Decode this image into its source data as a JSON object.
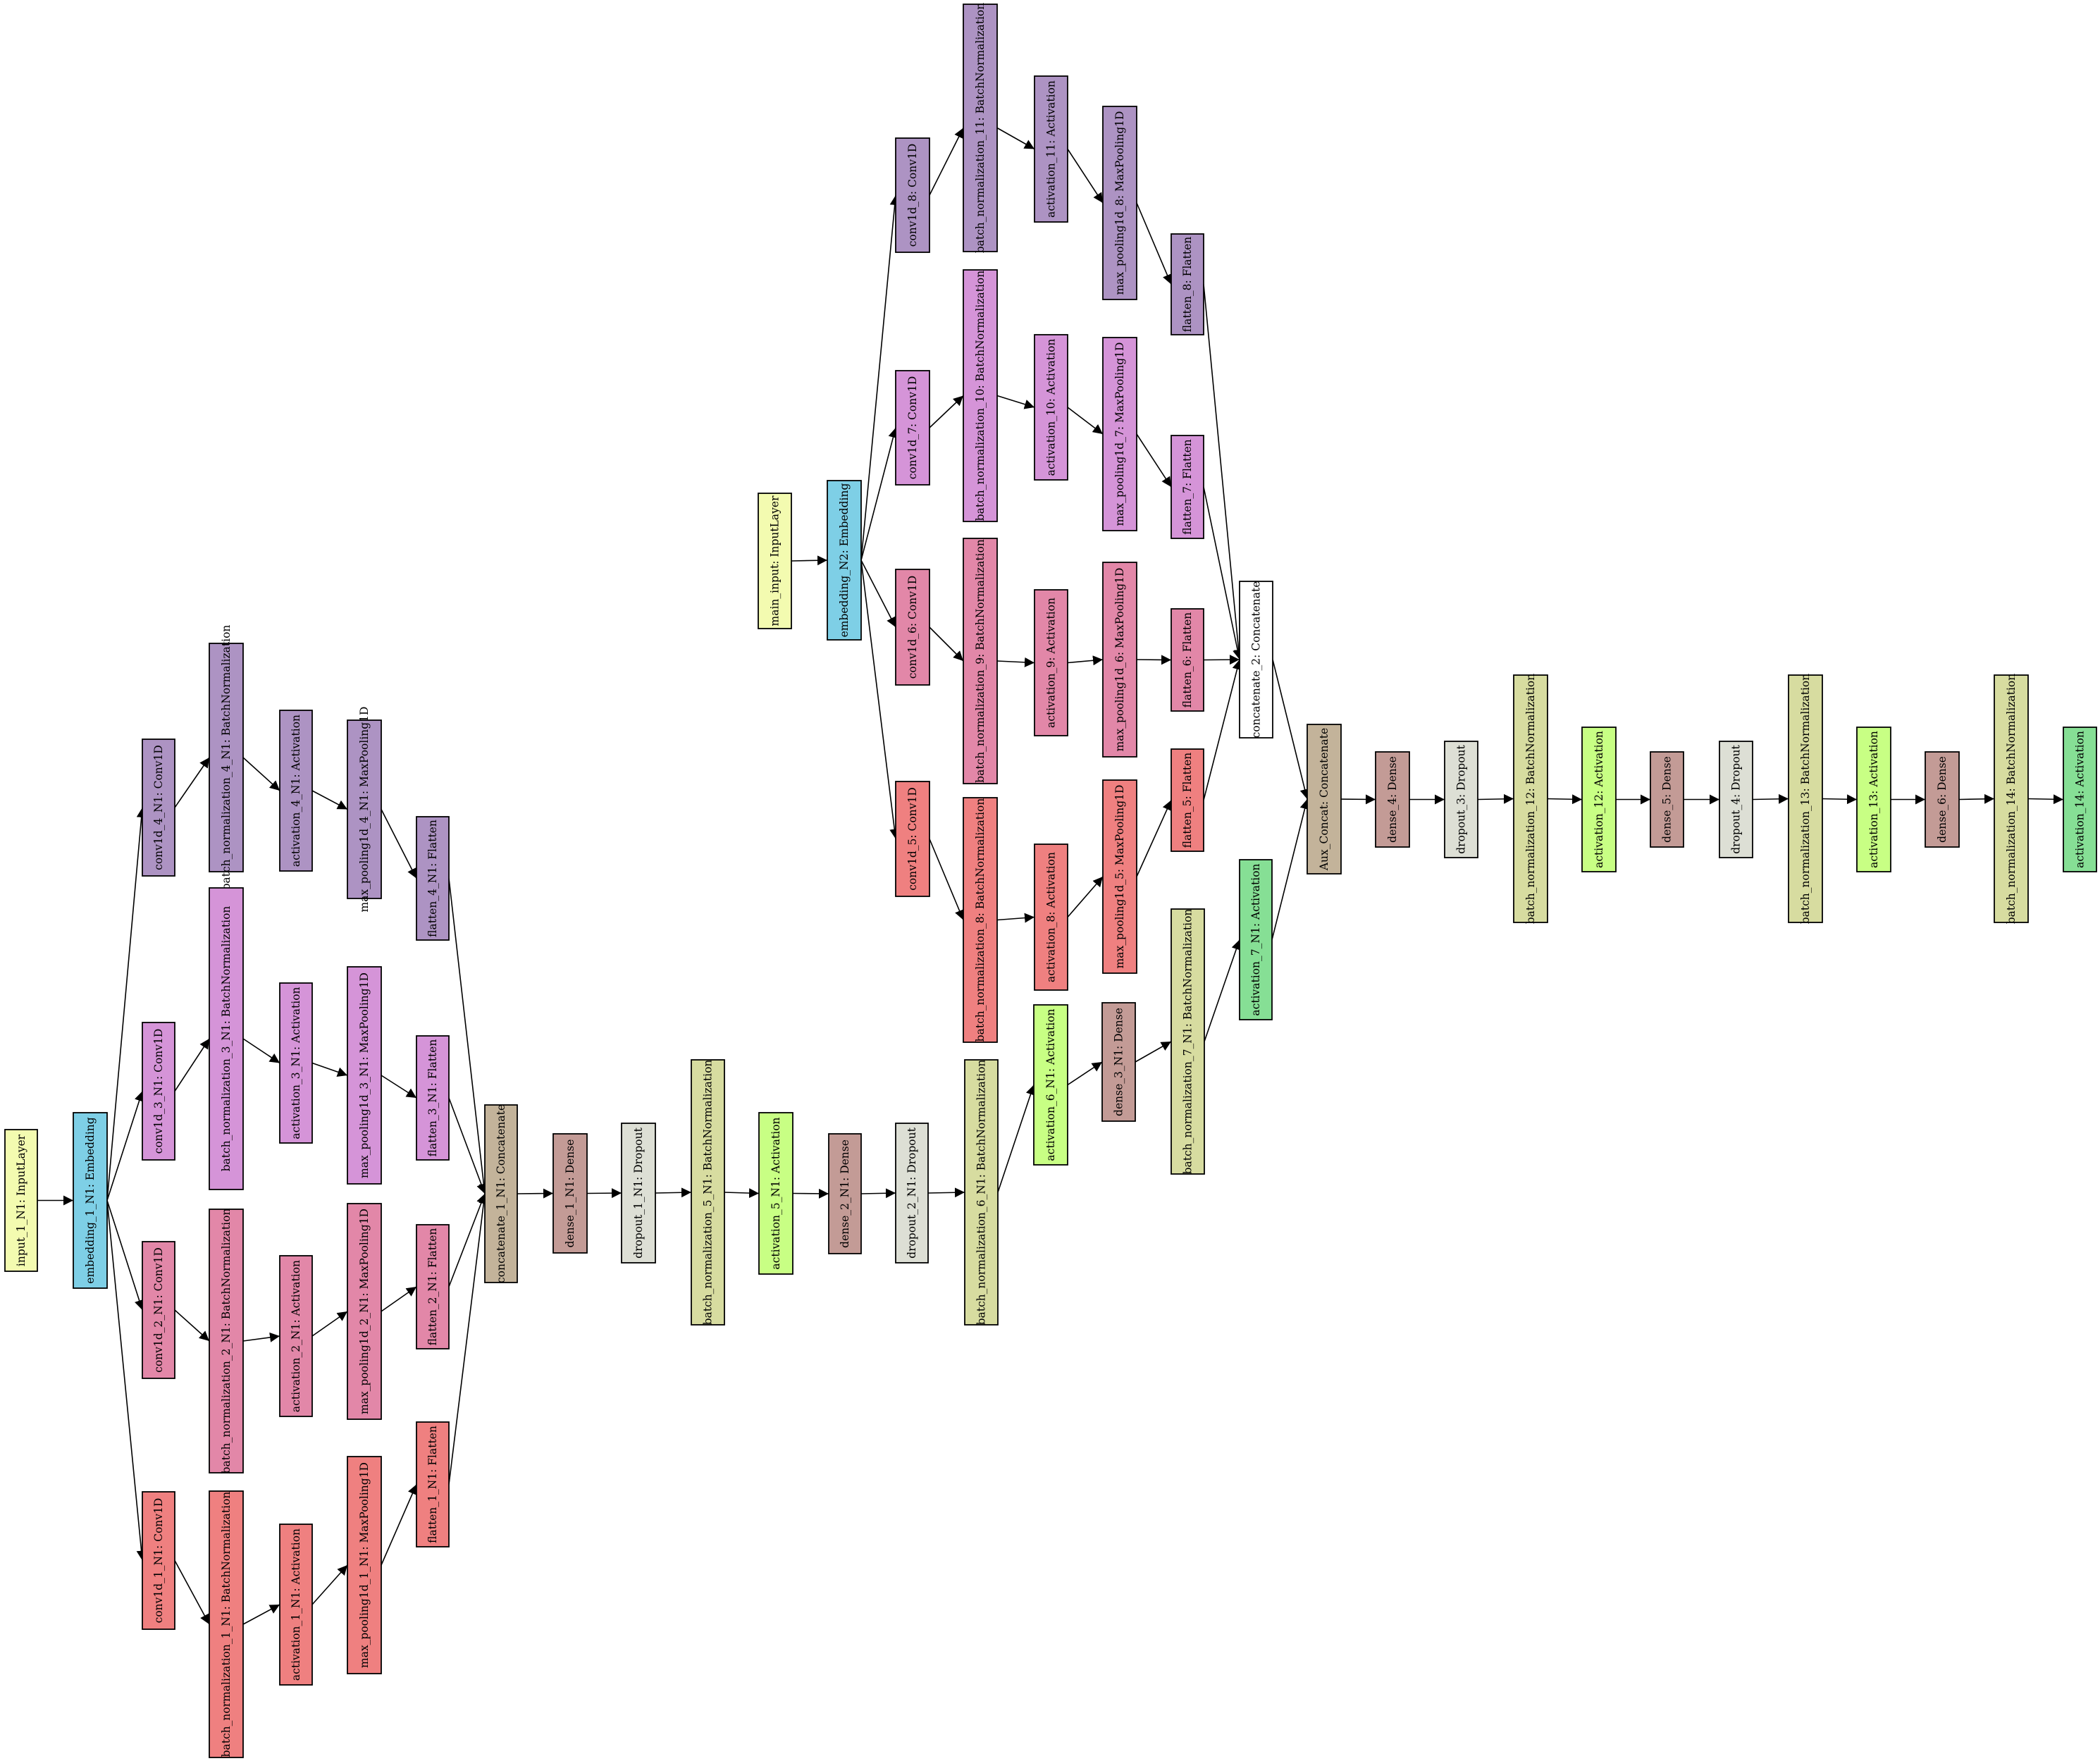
{
  "colors": {
    "input": "#f3fbb0",
    "embedding": "#7ecfe6",
    "branch_a": "#ad93c3",
    "branch_b": "#d594d8",
    "branch_c": "#e287a8",
    "branch_d": "#ef8080",
    "concat": "#c3b39a",
    "dense": "#c39b96",
    "dropout": "#dddfd5",
    "batchnorm": "#d7dca0",
    "activation_lime": "#c8ff84",
    "activation_green": "#86df95",
    "white": "#ffffff"
  },
  "nodes": [
    {
      "id": "input_1",
      "label": "input_1_N1: InputLayer",
      "type": "input"
    },
    {
      "id": "embedding_1",
      "label": "embedding_1_N1: Embedding",
      "type": "embedding"
    },
    {
      "id": "conv1d_4",
      "label": "conv1d_4_N1: Conv1D",
      "type": "branch_a"
    },
    {
      "id": "conv1d_3",
      "label": "conv1d_3_N1: Conv1D",
      "type": "branch_b"
    },
    {
      "id": "conv1d_2",
      "label": "conv1d_2_N1: Conv1D",
      "type": "branch_c"
    },
    {
      "id": "conv1d_1",
      "label": "conv1d_1_N1: Conv1D",
      "type": "branch_d"
    },
    {
      "id": "bn_4",
      "label": "batch_normalization_4_N1: BatchNormalization",
      "type": "branch_a"
    },
    {
      "id": "bn_3",
      "label": "batch_normalization_3_N1: BatchNormalization",
      "type": "branch_b"
    },
    {
      "id": "bn_2",
      "label": "batch_normalization_2_N1: BatchNormalization",
      "type": "branch_c"
    },
    {
      "id": "bn_1",
      "label": "batch_normalization_1_N1: BatchNormalization",
      "type": "branch_d"
    },
    {
      "id": "act_4",
      "label": "activation_4_N1: Activation",
      "type": "branch_a"
    },
    {
      "id": "act_3",
      "label": "activation_3_N1: Activation",
      "type": "branch_b"
    },
    {
      "id": "act_2",
      "label": "activation_2_N1: Activation",
      "type": "branch_c"
    },
    {
      "id": "act_1",
      "label": "activation_1_N1: Activation",
      "type": "branch_d"
    },
    {
      "id": "mp_4",
      "label": "max_pooling1d_4_N1: MaxPooling1D",
      "type": "branch_a"
    },
    {
      "id": "mp_3",
      "label": "max_pooling1d_3_N1: MaxPooling1D",
      "type": "branch_b"
    },
    {
      "id": "mp_2",
      "label": "max_pooling1d_2_N1: MaxPooling1D",
      "type": "branch_c"
    },
    {
      "id": "mp_1",
      "label": "max_pooling1d_1_N1: MaxPooling1D",
      "type": "branch_d"
    },
    {
      "id": "fl_4",
      "label": "flatten_4_N1: Flatten",
      "type": "branch_a"
    },
    {
      "id": "fl_3",
      "label": "flatten_3_N1: Flatten",
      "type": "branch_b"
    },
    {
      "id": "fl_2",
      "label": "flatten_2_N1: Flatten",
      "type": "branch_c"
    },
    {
      "id": "fl_1",
      "label": "flatten_1_N1: Flatten",
      "type": "branch_d"
    },
    {
      "id": "concat_1",
      "label": "concatenate_1_N1: Concatenate",
      "type": "concat"
    },
    {
      "id": "dense_1",
      "label": "dense_1_N1: Dense",
      "type": "dense"
    },
    {
      "id": "dropout_1",
      "label": "dropout_1_N1: Dropout",
      "type": "dropout"
    },
    {
      "id": "bn_5",
      "label": "batch_normalization_5_N1: BatchNormalization",
      "type": "batchnorm"
    },
    {
      "id": "act_5",
      "label": "activation_5_N1: Activation",
      "type": "activation_lime"
    },
    {
      "id": "dense_2",
      "label": "dense_2_N1: Dense",
      "type": "dense"
    },
    {
      "id": "dropout_2",
      "label": "dropout_2_N1: Dropout",
      "type": "dropout"
    },
    {
      "id": "bn_6",
      "label": "batch_normalization_6_N1: BatchNormalization",
      "type": "batchnorm"
    },
    {
      "id": "act_6",
      "label": "activation_6_N1: Activation",
      "type": "activation_lime"
    },
    {
      "id": "dense_3",
      "label": "dense_3_N1: Dense",
      "type": "dense"
    },
    {
      "id": "bn_7",
      "label": "batch_normalization_7_N1: BatchNormalization",
      "type": "batchnorm"
    },
    {
      "id": "act_7",
      "label": "activation_7_N1: Activation",
      "type": "activation_green"
    },
    {
      "id": "main_input",
      "label": "main_input: InputLayer",
      "type": "input"
    },
    {
      "id": "embedding_2",
      "label": "embedding_N2: Embedding",
      "type": "embedding"
    },
    {
      "id": "conv1d_8",
      "label": "conv1d_8: Conv1D",
      "type": "branch_a"
    },
    {
      "id": "conv1d_7",
      "label": "conv1d_7: Conv1D",
      "type": "branch_b"
    },
    {
      "id": "conv1d_6",
      "label": "conv1d_6: Conv1D",
      "type": "branch_c"
    },
    {
      "id": "conv1d_5",
      "label": "conv1d_5: Conv1D",
      "type": "branch_d"
    },
    {
      "id": "bn_11",
      "label": "batch_normalization_11: BatchNormalization",
      "type": "branch_a"
    },
    {
      "id": "bn_10",
      "label": "batch_normalization_10: BatchNormalization",
      "type": "branch_b"
    },
    {
      "id": "bn_9",
      "label": "batch_normalization_9: BatchNormalization",
      "type": "branch_c"
    },
    {
      "id": "bn_8",
      "label": "batch_normalization_8: BatchNormalization",
      "type": "branch_d"
    },
    {
      "id": "act_11",
      "label": "activation_11: Activation",
      "type": "branch_a"
    },
    {
      "id": "act_10",
      "label": "activation_10: Activation",
      "type": "branch_b"
    },
    {
      "id": "act_9",
      "label": "activation_9: Activation",
      "type": "branch_c"
    },
    {
      "id": "act_8",
      "label": "activation_8: Activation",
      "type": "branch_d"
    },
    {
      "id": "mp_8",
      "label": "max_pooling1d_8: MaxPooling1D",
      "type": "branch_a"
    },
    {
      "id": "mp_7",
      "label": "max_pooling1d_7: MaxPooling1D",
      "type": "branch_b"
    },
    {
      "id": "mp_6",
      "label": "max_pooling1d_6: MaxPooling1D",
      "type": "branch_c"
    },
    {
      "id": "mp_5",
      "label": "max_pooling1d_5: MaxPooling1D",
      "type": "branch_d"
    },
    {
      "id": "fl_8",
      "label": "flatten_8: Flatten",
      "type": "branch_a"
    },
    {
      "id": "fl_7",
      "label": "flatten_7: Flatten",
      "type": "branch_b"
    },
    {
      "id": "fl_6",
      "label": "flatten_6: Flatten",
      "type": "branch_c"
    },
    {
      "id": "fl_5",
      "label": "flatten_5: Flatten",
      "type": "branch_d"
    },
    {
      "id": "concat_2",
      "label": "concatenate_2: Concatenate",
      "type": "white"
    },
    {
      "id": "aux_concat",
      "label": "Aux_Concat: Concatenate",
      "type": "concat"
    },
    {
      "id": "dense_4",
      "label": "dense_4: Dense",
      "type": "dense"
    },
    {
      "id": "dropout_3",
      "label": "dropout_3: Dropout",
      "type": "dropout"
    },
    {
      "id": "bn_12",
      "label": "batch_normalization_12: BatchNormalization",
      "type": "batchnorm"
    },
    {
      "id": "act_12",
      "label": "activation_12: Activation",
      "type": "activation_lime"
    },
    {
      "id": "dense_5",
      "label": "dense_5: Dense",
      "type": "dense"
    },
    {
      "id": "dropout_4",
      "label": "dropout_4: Dropout",
      "type": "dropout"
    },
    {
      "id": "bn_13",
      "label": "batch_normalization_13: BatchNormalization",
      "type": "batchnorm"
    },
    {
      "id": "act_13",
      "label": "activation_13: Activation",
      "type": "activation_lime"
    },
    {
      "id": "dense_6",
      "label": "dense_6: Dense",
      "type": "dense"
    },
    {
      "id": "bn_14",
      "label": "batch_normalization_14: BatchNormalization",
      "type": "batchnorm"
    },
    {
      "id": "act_14",
      "label": "activation_14: Activation",
      "type": "activation_green"
    }
  ],
  "edges": [
    [
      "input_1",
      "embedding_1"
    ],
    [
      "embedding_1",
      "conv1d_4"
    ],
    [
      "embedding_1",
      "conv1d_3"
    ],
    [
      "embedding_1",
      "conv1d_2"
    ],
    [
      "embedding_1",
      "conv1d_1"
    ],
    [
      "conv1d_4",
      "bn_4"
    ],
    [
      "conv1d_3",
      "bn_3"
    ],
    [
      "conv1d_2",
      "bn_2"
    ],
    [
      "conv1d_1",
      "bn_1"
    ],
    [
      "bn_4",
      "act_4"
    ],
    [
      "bn_3",
      "act_3"
    ],
    [
      "bn_2",
      "act_2"
    ],
    [
      "bn_1",
      "act_1"
    ],
    [
      "act_4",
      "mp_4"
    ],
    [
      "act_3",
      "mp_3"
    ],
    [
      "act_2",
      "mp_2"
    ],
    [
      "act_1",
      "mp_1"
    ],
    [
      "mp_4",
      "fl_4"
    ],
    [
      "mp_3",
      "fl_3"
    ],
    [
      "mp_2",
      "fl_2"
    ],
    [
      "mp_1",
      "fl_1"
    ],
    [
      "fl_4",
      "concat_1"
    ],
    [
      "fl_3",
      "concat_1"
    ],
    [
      "fl_2",
      "concat_1"
    ],
    [
      "fl_1",
      "concat_1"
    ],
    [
      "concat_1",
      "dense_1"
    ],
    [
      "dense_1",
      "dropout_1"
    ],
    [
      "dropout_1",
      "bn_5"
    ],
    [
      "bn_5",
      "act_5"
    ],
    [
      "act_5",
      "dense_2"
    ],
    [
      "dense_2",
      "dropout_2"
    ],
    [
      "dropout_2",
      "bn_6"
    ],
    [
      "bn_6",
      "act_6"
    ],
    [
      "act_6",
      "dense_3"
    ],
    [
      "dense_3",
      "bn_7"
    ],
    [
      "bn_7",
      "act_7"
    ],
    [
      "act_7",
      "aux_concat"
    ],
    [
      "main_input",
      "embedding_2"
    ],
    [
      "embedding_2",
      "conv1d_8"
    ],
    [
      "embedding_2",
      "conv1d_7"
    ],
    [
      "embedding_2",
      "conv1d_6"
    ],
    [
      "embedding_2",
      "conv1d_5"
    ],
    [
      "conv1d_8",
      "bn_11"
    ],
    [
      "conv1d_7",
      "bn_10"
    ],
    [
      "conv1d_6",
      "bn_9"
    ],
    [
      "conv1d_5",
      "bn_8"
    ],
    [
      "bn_11",
      "act_11"
    ],
    [
      "bn_10",
      "act_10"
    ],
    [
      "bn_9",
      "act_9"
    ],
    [
      "bn_8",
      "act_8"
    ],
    [
      "act_11",
      "mp_8"
    ],
    [
      "act_10",
      "mp_7"
    ],
    [
      "act_9",
      "mp_6"
    ],
    [
      "act_8",
      "mp_5"
    ],
    [
      "mp_8",
      "fl_8"
    ],
    [
      "mp_7",
      "fl_7"
    ],
    [
      "mp_6",
      "fl_6"
    ],
    [
      "mp_5",
      "fl_5"
    ],
    [
      "fl_8",
      "concat_2"
    ],
    [
      "fl_7",
      "concat_2"
    ],
    [
      "fl_6",
      "concat_2"
    ],
    [
      "fl_5",
      "concat_2"
    ],
    [
      "concat_2",
      "aux_concat"
    ],
    [
      "aux_concat",
      "dense_4"
    ],
    [
      "dense_4",
      "dropout_3"
    ],
    [
      "dropout_3",
      "bn_12"
    ],
    [
      "bn_12",
      "act_12"
    ],
    [
      "act_12",
      "dense_5"
    ],
    [
      "dense_5",
      "dropout_4"
    ],
    [
      "dropout_4",
      "bn_13"
    ],
    [
      "bn_13",
      "act_13"
    ],
    [
      "act_13",
      "dense_6"
    ],
    [
      "dense_6",
      "bn_14"
    ],
    [
      "bn_14",
      "act_14"
    ]
  ]
}
